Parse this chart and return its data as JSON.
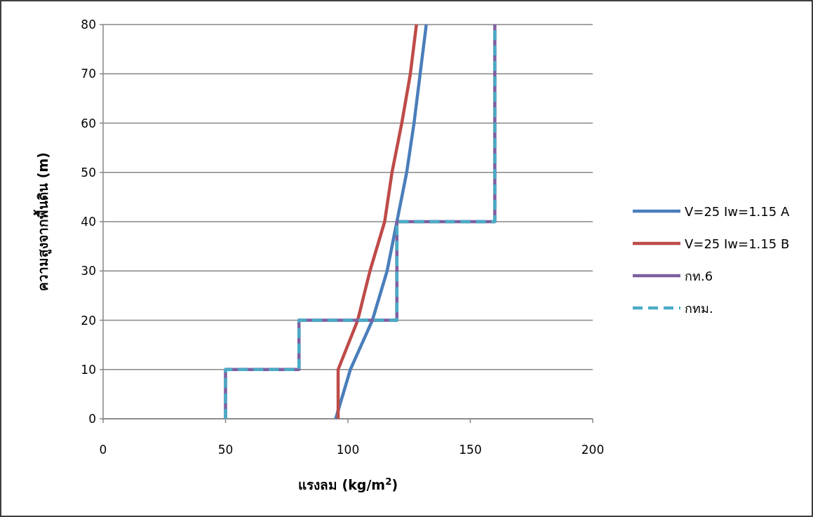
{
  "chart_data": {
    "type": "line",
    "xlabel": "แรงลม (kg/m$^{2}$)",
    "ylabel": "ความสูงจากพื้นดิน (m)",
    "xlim": [
      0,
      200
    ],
    "ylim": [
      0,
      80
    ],
    "xticks": [
      0,
      50,
      100,
      150,
      200
    ],
    "yticks": [
      0,
      10,
      20,
      30,
      40,
      50,
      60,
      70,
      80
    ],
    "grid": "y",
    "legend": "right",
    "series": [
      {
        "name": "V=25 Iw=1.15 A",
        "color": "#4a7ebb",
        "x": [
          95,
          101,
          110,
          116,
          120,
          124,
          127,
          129.5,
          132
        ],
        "values": [
          0,
          10,
          20,
          30,
          40,
          50,
          60,
          70,
          80
        ]
      },
      {
        "name": "V=25 Iw=1.15 B",
        "color": "#be4b48",
        "x": [
          96,
          96,
          104,
          109,
          115,
          118,
          122,
          125.5,
          128
        ],
        "values": [
          0,
          10,
          20,
          30,
          40,
          50,
          60,
          70,
          80
        ]
      },
      {
        "name": "กท.6",
        "color": "#7d60a0",
        "x": [
          50,
          50,
          80,
          80,
          120,
          120,
          160,
          160
        ],
        "values": [
          0,
          10,
          10,
          20,
          20,
          40,
          40,
          80
        ]
      },
      {
        "name": "กทม.",
        "color": "#4bacc6",
        "line_style": "dashed",
        "x": [
          50,
          50,
          80,
          80,
          120,
          120,
          160,
          160
        ],
        "values": [
          0,
          10,
          10,
          20,
          20,
          40,
          40,
          80
        ]
      }
    ]
  }
}
